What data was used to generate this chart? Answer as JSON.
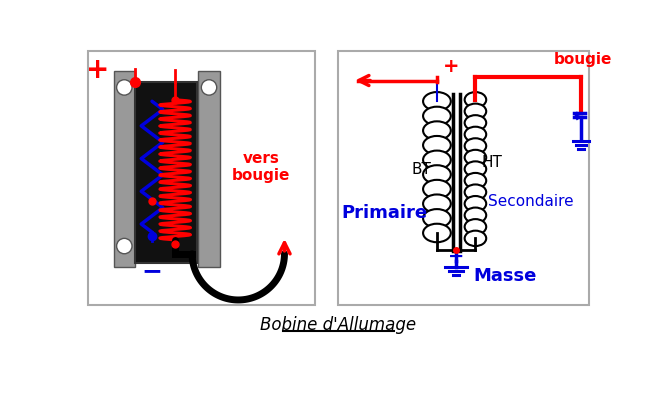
{
  "title": "Bobine d'Allumage",
  "bg_color": "#ffffff",
  "red": "#ff0000",
  "blue": "#0000dd",
  "black": "#000000",
  "gray": "#888888",
  "coil_black": "#111111",
  "text_vers_bougie": "vers\nbougie",
  "text_primaire": "Primaire",
  "text_secondaire": "Secondaire",
  "text_bt": "BT",
  "text_ht": "HT",
  "text_masse": "Masse",
  "text_bougie": "bougie",
  "text_plus": "+",
  "text_minus": "−"
}
